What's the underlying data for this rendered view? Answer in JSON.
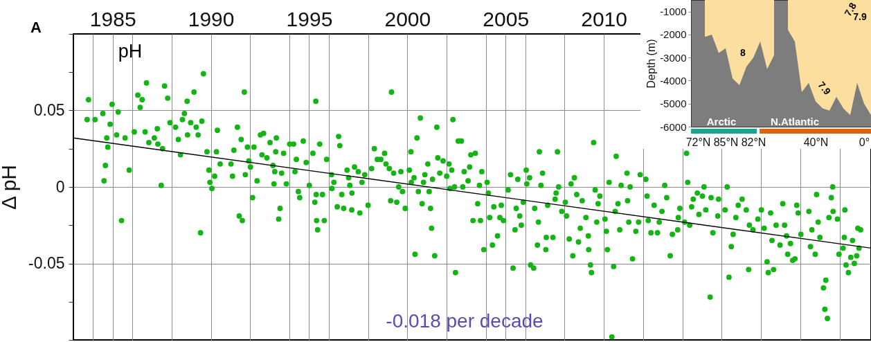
{
  "chart_data": [
    {
      "type": "scatter",
      "ylabel": "Δ pH",
      "annotations": [
        "A",
        "pH",
        "-0.018 per decade"
      ],
      "xlim": [
        1983,
        2023.6
      ],
      "ylim": [
        -0.1,
        0.1
      ],
      "xticks": [
        {
          "value": 1984,
          "label": null
        },
        1985,
        {
          "value": 1986,
          "label": null
        },
        {
          "value": 1988,
          "label": null
        },
        1990,
        {
          "value": 1992,
          "label": null
        },
        {
          "value": 1994,
          "label": null
        },
        1995,
        {
          "value": 1996,
          "label": null
        },
        {
          "value": 1998,
          "label": null
        },
        2000,
        {
          "value": 2002,
          "label": null
        },
        {
          "value": 2004,
          "label": null
        },
        2005,
        {
          "value": 2006,
          "label": null
        },
        {
          "value": 2008,
          "label": null
        },
        2010,
        {
          "value": 2012,
          "label": null
        },
        {
          "value": 2014,
          "label": null
        },
        {
          "value": 2016,
          "label": null
        },
        {
          "value": 2018,
          "label": null
        },
        {
          "value": 2020,
          "label": null
        },
        {
          "value": 2022,
          "label": null
        }
      ],
      "yticks": [
        {
          "value": -0.1,
          "label": null
        },
        {
          "value": -0.075,
          "label": null
        },
        -0.05,
        {
          "value": -0.025,
          "label": null
        },
        0,
        {
          "value": 0.025,
          "label": null
        },
        0.05,
        {
          "value": 0.075,
          "label": null
        },
        {
          "value": 0.1,
          "label": null
        }
      ],
      "grid": true,
      "series": [
        {
          "color": "#14b414",
          "marker": "circle",
          "x": [
            1983.77,
            1983.7,
            1984.1,
            1984.5,
            1984.97,
            1985.28,
            1984.87,
            1985.2,
            1984.7,
            1984.75,
            1984.63,
            1984.56,
            1985.45,
            1985.84,
            1985.63,
            1986.1,
            1986.28,
            1986.4,
            1986.5,
            1986.72,
            1986.65,
            1986.84,
            1987.12,
            1987.3,
            1987.27,
            1987.64,
            1987.8,
            1987.47,
            1987.54,
            1987.92,
            1988.2,
            1988.34,
            1988.45,
            1988.55,
            1988.65,
            1988.81,
            1988.97,
            1988.79,
            1989.14,
            1989.25,
            1989.35,
            1989.54,
            1989.62,
            1989.47,
            1989.8,
            1989.9,
            1989.95,
            1990.05,
            1990.19,
            1990.33,
            1990.28,
            1990.47,
            1991.02,
            1991.1,
            1991.17,
            1991.35,
            1991.54,
            1991.44,
            1991.6,
            1991.7,
            1991.75,
            1991.86,
            1991.93,
            1992.01,
            1992.12,
            1992.19,
            1992.35,
            1992.52,
            1992.68,
            1992.6,
            1992.85,
            1993.01,
            1993.16,
            1993.25,
            1993.21,
            1993.52,
            1993.45,
            1993.33,
            1993.3,
            1993.6,
            1993.7,
            1993.84,
            1994.01,
            1994.21,
            1994.35,
            1994.28,
            1994.45,
            1994.52,
            1994.7,
            1994.85,
            1995.19,
            1995.01,
            1995.29,
            1995.43,
            1995.34,
            1995.54,
            1995.36,
            1995.38,
            1995.77,
            1995.68,
            1995.89,
            1996.5,
            1996.56,
            1996.14,
            1996.26,
            1996.16,
            1996.43,
            1996.76,
            1996.66,
            1996.93,
            1997.01,
            1997.07,
            1997.18,
            1997.17,
            1997.31,
            1997.5,
            1997.58,
            1997.69,
            1997.83,
            1998.0,
            1998.18,
            1998.32,
            1998.47,
            1998.65,
            1998.84,
            1998.91,
            1999.08,
            1999.19,
            1999.3,
            1999.15,
            1999.46,
            1999.56,
            1999.67,
            1999.75,
            1999.89,
            2000.1,
            2000.18,
            2000.2,
            2000.34,
            2000.49,
            2000.66,
            2000.56,
            2000.39,
            2000.75,
            2000.82,
            2000.89,
            2001.04,
            2001.11,
            2001.18,
            2001.23,
            2001.28,
            2001.39,
            2001.5,
            2001.55,
            2001.65,
            2001.82,
            2002.0,
            2002.12,
            2002.17,
            2002.32,
            2002.26,
            2002.4,
            2002.45,
            2002.59,
            2002.75,
            2002.82,
            2002.89,
            2003.09,
            2003.17,
            2003.23,
            2003.46,
            2003.34,
            2003.72,
            2003.58,
            2003.67,
            2003.79,
            2003.89,
            2004.06,
            2004.12,
            2004.19,
            2004.33,
            2004.4,
            2004.59,
            2004.71,
            2004.89,
            2004.78,
            2005.13,
            2005.25,
            2005.38,
            2005.48,
            2005.54,
            2005.62,
            2005.72,
            2005.8,
            2005.9,
            2006.05,
            2006.08,
            2006.22,
            2006.27,
            2006.43,
            2006.48,
            2006.62,
            2006.67,
            2006.72,
            2006.8,
            2006.88,
            2007.05,
            2007.07,
            2007.14,
            2007.41,
            2007.52,
            2007.57,
            2007.64,
            2007.7,
            2007.86,
            2008.04,
            2008.1,
            2008.24,
            2008.33,
            2008.42,
            2008.5,
            2008.62,
            2008.71,
            2008.8,
            2008.9,
            2009.09,
            2009.21,
            2009.23,
            2009.32,
            2009.37,
            2009.48,
            2009.56,
            2009.64,
            2009.71,
            2009.8,
            2010.06,
            2010.13,
            2010.18,
            2010.27,
            2010.41,
            2010.5,
            2010.58,
            2010.63,
            2010.72,
            2010.81,
            2010.88,
            2011.18,
            2011.21,
            2011.27,
            2011.34,
            2011.46,
            2011.63,
            2011.77,
            2014.21,
            2014.27,
            2011.85,
            2012.14,
            2012.2,
            2012.56,
            2012.26,
            2012.4,
            2012.73,
            2012.82,
            2012.96,
            2013.1,
            2013.2,
            2013.38,
            2013.49,
            2013.76,
            2013.79,
            2013.87,
            2014.11,
            2014.37,
            2014.47,
            2014.55,
            2014.76,
            2014.84,
            2015.02,
            2015.1,
            2015.19,
            2015.41,
            2015.46,
            2015.55,
            2015.8,
            2015.84,
            2016.17,
            2016.28,
            2016.37,
            2016.49,
            2016.58,
            2016.72,
            2016.84,
            2017.04,
            2017.25,
            2017.37,
            2017.41,
            2017.59,
            2017.84,
            2018.02,
            2018.16,
            2018.31,
            2018.37,
            2018.49,
            2018.56,
            2018.64,
            2018.77,
            2018.97,
            2019.11,
            2019.2,
            2019.3,
            2019.36,
            2019.5,
            2019.61,
            2019.73,
            2019.82,
            2019.89,
            2020.03,
            2020.44,
            2020.52,
            2020.59,
            2020.76,
            2020.83,
            2020.91,
            2021.0,
            2021.18,
            2021.3,
            2021.25,
            2021.38,
            2021.46,
            2021.58,
            2021.65,
            2021.67,
            2021.89,
            2021.97,
            2022.18,
            2022.24,
            2022.27,
            2022.33,
            2022.45,
            2022.57,
            2022.66,
            2022.75,
            2022.87,
            2022.93,
            2023.07,
            2022.99
          ],
          "values": [
            0.057,
            0.044,
            0.044,
            0.048,
            0.054,
            0.049,
            0.041,
            0.034,
            0.032,
            0.026,
            0.014,
            0.004,
            -0.022,
            0.011,
            0.032,
            0.036,
            0.06,
            0.052,
            0.057,
            0.068,
            0.036,
            0.029,
            0.032,
            0.028,
            0.038,
            0.066,
            0.058,
            0.001,
            0.025,
            0.042,
            0.039,
            0.031,
            0.021,
            0.044,
            0.048,
            0.034,
            0.042,
            0.056,
            0.062,
            0.039,
            0.034,
            0.043,
            0.074,
            -0.03,
            0.023,
            0.011,
            0.003,
            -0.001,
            0.007,
            0.037,
            0.023,
            0.015,
            0.015,
            0.007,
            0.024,
            0.039,
            0.031,
            -0.019,
            -0.022,
            0.062,
            0.008,
            0.026,
            0.017,
            0.013,
            -0.007,
            0.026,
            0.004,
            0.034,
            0.035,
            0.021,
            0.019,
            0.029,
            0.014,
            0.01,
            0.002,
            -0.014,
            -0.021,
            0.032,
            0.023,
            0.009,
            0.022,
            0.002,
            0.028,
            0.028,
            0.018,
            0.01,
            -0.003,
            -0.007,
            0.03,
            0.016,
            0.022,
            0.001,
            -0.01,
            -0.028,
            0.056,
            0.028,
            -0.005,
            -0.022,
            -0.022,
            -0.005,
            0.018,
            0.033,
            0.027,
            0.008,
            0.003,
            -0.001,
            -0.013,
            -0.014,
            -0.005,
            0.011,
            0.006,
            0.001,
            -0.004,
            -0.015,
            0.013,
            0.01,
            -0.017,
            0.003,
            0.008,
            -0.012,
            0.012,
            0.025,
            0.018,
            0.018,
            0.022,
            0.015,
            0.012,
            0.062,
            0.009,
            -0.009,
            -0.01,
            0.0,
            0.01,
            -0.003,
            -0.014,
            0.011,
            0.023,
            0.003,
            0.006,
            0.032,
            0.045,
            -0.003,
            -0.044,
            -0.011,
            0.003,
            0.008,
            0.015,
            -0.003,
            -0.014,
            -0.027,
            0.005,
            -0.045,
            0.039,
            0.019,
            0.009,
            0.017,
            0.007,
            0.015,
            -0.001,
            0.044,
            0.011,
            0.0,
            -0.056,
            0.03,
            0.03,
            0.0,
            0.01,
            0.004,
            0.013,
            0.021,
            0.022,
            -0.022,
            -0.022,
            -0.011,
            0.001,
            0.01,
            -0.041,
            0.003,
            -0.004,
            -0.02,
            -0.038,
            -0.013,
            -0.032,
            -0.02,
            -0.022,
            -0.012,
            -0.002,
            0.008,
            -0.053,
            -0.028,
            -0.014,
            0.005,
            -0.019,
            -0.025,
            -0.01,
            0.011,
            0.002,
            0.006,
            -0.051,
            -0.053,
            -0.014,
            -0.038,
            -0.023,
            0.023,
            0.001,
            0.009,
            -0.041,
            -0.033,
            -0.012,
            -0.033,
            -0.008,
            -0.004,
            0.023,
            0.0,
            -0.016,
            -0.01,
            -0.019,
            -0.034,
            0.002,
            -0.045,
            0.006,
            -0.005,
            -0.036,
            -0.027,
            -0.009,
            -0.02,
            -0.032,
            -0.041,
            -0.051,
            -0.056,
            0.029,
            -0.002,
            -0.023,
            -0.011,
            -0.006,
            -0.021,
            -0.029,
            -0.041,
            0.003,
            -0.098,
            -0.052,
            -0.016,
            0.02,
            -0.011,
            -0.028,
            0.001,
            0.009,
            -0.009,
            -0.023,
            0.0,
            -0.047,
            -0.029,
            -0.023,
            0.022,
            0.003,
            0.008,
            0.005,
            -0.006,
            -0.012,
            -0.022,
            -0.03,
            -0.03,
            -0.023,
            -0.016,
            0.001,
            -0.007,
            -0.045,
            -0.031,
            -0.028,
            -0.02,
            -0.014,
            -0.023,
            -0.025,
            -0.013,
            -0.008,
            -0.004,
            -0.018,
            -0.006,
            0.0,
            -0.015,
            -0.072,
            -0.007,
            -0.03,
            -0.019,
            -0.008,
            -0.015,
            0.0,
            -0.059,
            -0.039,
            -0.031,
            -0.02,
            -0.012,
            -0.008,
            -0.015,
            -0.054,
            -0.025,
            -0.028,
            -0.021,
            -0.015,
            -0.027,
            -0.049,
            -0.056,
            -0.017,
            -0.035,
            -0.054,
            -0.025,
            -0.038,
            -0.011,
            -0.025,
            -0.032,
            -0.044,
            -0.037,
            -0.048,
            -0.047,
            -0.012,
            -0.017,
            -0.031,
            -0.016,
            -0.039,
            -0.028,
            -0.044,
            -0.005,
            -0.023,
            -0.033,
            -0.066,
            -0.061,
            -0.08,
            -0.086,
            -0.02,
            -0.007,
            0.0,
            -0.016,
            -0.021,
            -0.044,
            -0.04,
            -0.033,
            -0.015,
            -0.051,
            -0.056,
            -0.046,
            -0.035,
            -0.05,
            -0.045,
            -0.027,
            -0.028,
            -0.04
          ]
        },
        {
          "type": "line",
          "color": "#000000",
          "x": [
            1983,
            2023.6
          ],
          "values": [
            0.032,
            -0.04
          ]
        }
      ]
    },
    {
      "type": "area",
      "ylabel": "Depth (m)",
      "categories": [
        null,
        "72°N",
        null,
        null,
        null,
        "85°N",
        null,
        null,
        null,
        "82°N",
        null,
        null,
        null,
        null,
        null,
        null,
        null,
        null,
        "40°N",
        null,
        null,
        null,
        null,
        null,
        null,
        "0°",
        null
      ],
      "values": [
        null,
        null,
        -2100,
        -2000,
        -2800,
        -2600,
        -3900,
        -4200,
        -3400,
        -3000,
        -2300,
        -3500,
        -2900,
        null,
        -1800,
        -2300,
        -4500,
        -4100,
        -4900,
        -5200,
        -5300,
        -4700,
        -5200,
        -5500,
        -4100,
        -5000,
        -5500
      ],
      "color": "#fcdf9f",
      "ylim": [
        -6000,
        -500
      ],
      "yticks": [
        -6000,
        -5000,
        -4000,
        -3000,
        -2000,
        -1000
      ],
      "annotations": [
        "Arctic",
        "N.Atlantic",
        "8",
        "7.9",
        "7.9",
        "7.8"
      ]
    }
  ]
}
